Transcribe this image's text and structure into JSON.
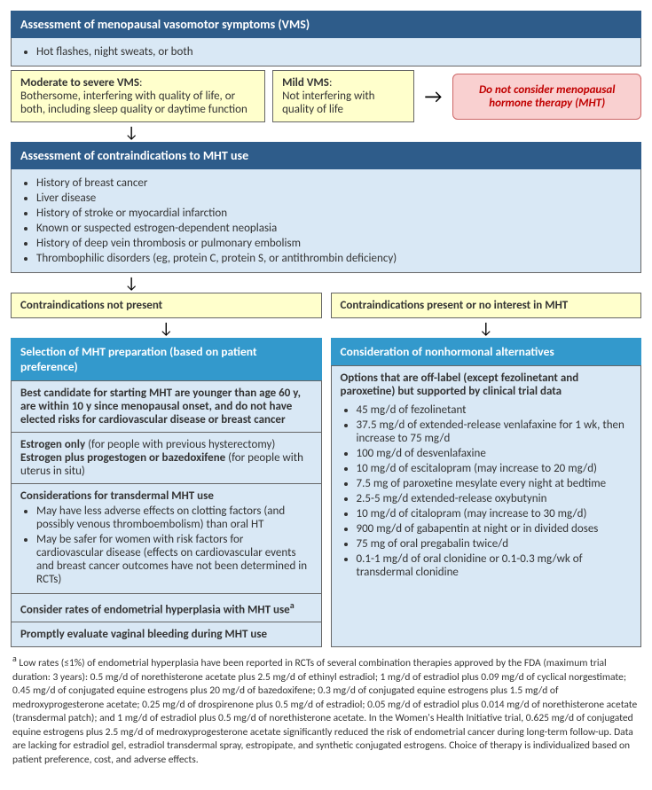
{
  "colors": {
    "header_dark": "#2e5c8a",
    "header_light": "#3399cc",
    "panel_blue": "#d9e8f5",
    "panel_yellow": "#ffffcc",
    "panel_pink": "#f9d0d0",
    "pink_border": "#cc6666",
    "pink_text": "#c00000",
    "border": "#666666",
    "text": "#333333",
    "bg": "#ffffff"
  },
  "step1": {
    "title": "Assessment of menopausal vasomotor symptoms (VMS)",
    "symptoms_item": "Hot flashes, night sweats, or both",
    "moderate_label": "Moderate to severe VMS",
    "moderate_desc": "Bothersome, interfering with quality of life, or both, including sleep quality or daytime function",
    "mild_label": "Mild VMS",
    "mild_desc": "Not interfering with quality of life",
    "pink_text": "Do not consider menopausal hormone therapy (MHT)"
  },
  "step2": {
    "title": "Assessment of contraindications to MHT use",
    "items": [
      "History of breast cancer",
      "Liver disease",
      "History of stroke or myocardial infarction",
      "Known or suspected estrogen-dependent neoplasia",
      "History of deep vein thrombosis or pulmonary embolism",
      "Thrombophilic disorders (eg, protein C, protein S, or antithrombin deficiency)"
    ]
  },
  "branch_left_label": "Contraindications not present",
  "branch_right_label": "Contraindications present or no interest in MHT",
  "left_panel": {
    "title": "Selection of MHT preparation (based on patient preference)",
    "best_candidate": "Best candidate for starting MHT are younger than age 60 y, are within 10 y since menopausal onset, and do not have elected risks for cardiovascular disease or breast cancer",
    "estrogen_only_bold": "Estrogen only",
    "estrogen_only_paren": " (for people with previous hysterectomy)",
    "estrogen_plus_bold": "Estrogen plus progestogen or bazedoxifene",
    "estrogen_plus_paren": " (for people with uterus in situ)",
    "transdermal_heading": "Considerations for transdermal MHT use",
    "transdermal_items": [
      "May have less adverse effects on clotting factors (and possibly venous thromboembolism) than oral HT",
      "May be safer for women with risk factors for cardiovascular disease (effects on cardiovascular events and breast cancer outcomes have not been determined in RCTs)"
    ],
    "endometrial_text": "Consider rates of endometrial hyperplasia with MHT use",
    "vaginal_text": "Promptly evaluate vaginal bleeding during MHT use"
  },
  "right_panel": {
    "title": "Consideration of nonhormonal alternatives",
    "intro": "Options that are off-label (except fezolinetant and paroxetine) but supported by clinical trial data",
    "items": [
      "45 mg/d of fezolinetant",
      "37.5 mg/d of extended-release venlafaxine for 1 wk, then increase to 75 mg/d",
      "100 mg/d of desvenlafaxine",
      "10 mg/d of escitalopram (may increase to 20 mg/d)",
      "7.5 mg of paroxetine mesylate every night at bedtime",
      "2.5-5 mg/d extended-release oxybutynin",
      "10 mg/d of citalopram (may increase to 30 mg/d)",
      "900 mg/d of gabapentin at night or in divided doses",
      "75 mg of oral pregabalin twice/d",
      "0.1-1 mg/d of oral clonidine or 0.1-0.3 mg/wk of transdermal clonidine"
    ]
  },
  "footnote_marker": "a",
  "footnote_text": "Low rates (≤1%) of endometrial hyperplasia have been reported in RCTs of several combination therapies approved by the FDA (maximum trial duration: 3 years): 0.5 mg/d of norethisterone acetate plus 2.5 mg/d of ethinyl estradiol; 1 mg/d of estradiol plus 0.09 mg/d of cyclical norgestimate; 0.45 mg/d of conjugated equine estrogens plus 20 mg/d of bazedoxifene; 0.3 mg/d of conjugated equine estrogens plus 1.5 mg/d of medroxyprogesterone acetate; 0.25 mg/d of drospirenone plus 0.5 mg/d of estradiol; 0.05 mg/d of estradiol plus 0.014 mg/d of norethisterone acetate (transdermal patch); and 1 mg/d of estradiol plus 0.5 mg/d of norethisterone acetate. In the Women's Health Initiative trial, 0.625 mg/d of conjugated equine estrogens plus 2.5 mg/d of medroxyprogesterone acetate significantly reduced the risk of endometrial cancer during long-term follow-up. Data are lacking for estradiol gel, estradiol transdermal spray, estropipate, and synthetic conjugated estrogens. Choice of therapy is individualized based on patient preference, cost, and adverse effects."
}
